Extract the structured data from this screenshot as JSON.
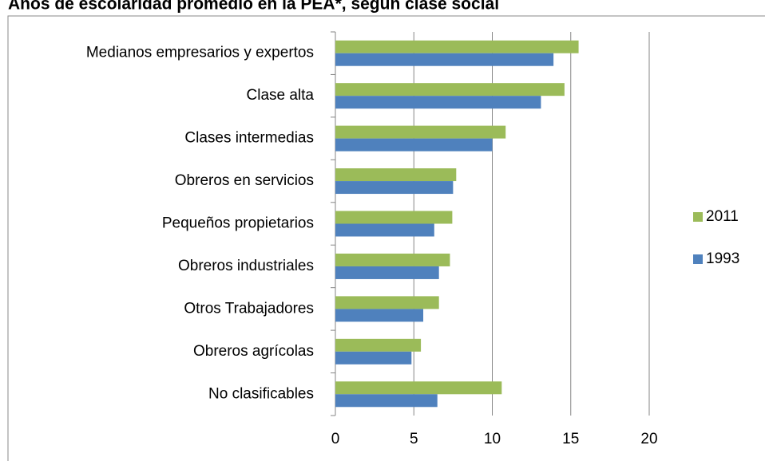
{
  "chart_data": {
    "type": "bar",
    "orientation": "horizontal",
    "title": "Años de escolaridad promedio en la PEA*, según clase social",
    "categories": [
      "Medianos empresarios y expertos",
      "Clase alta",
      "Clases intermedias",
      "Obreros en servicios",
      "Pequeños propietarios",
      "Obreros industriales",
      "Otros Trabajadores",
      "Obreros agrícolas",
      "No clasificables"
    ],
    "series": [
      {
        "name": "2011",
        "color": "#9bbb59",
        "values": [
          15.5,
          14.6,
          10.85,
          7.7,
          7.45,
          7.3,
          6.6,
          5.45,
          10.6
        ]
      },
      {
        "name": "1993",
        "color": "#4f81bd",
        "values": [
          13.9,
          13.1,
          10.0,
          7.5,
          6.3,
          6.6,
          5.6,
          4.85,
          6.5
        ]
      }
    ],
    "xlim": [
      0,
      20
    ],
    "xticks": [
      0,
      5,
      10,
      15,
      20
    ],
    "grid": true,
    "legend": "right"
  }
}
